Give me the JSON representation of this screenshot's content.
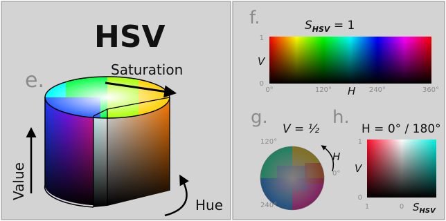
{
  "colors": {
    "panel_bg": "#d3d3d3",
    "panel_border": "#8f8f8f",
    "text_dark": "#111111",
    "text_gray": "#8a8a8a",
    "arrow": "#000000"
  },
  "cylinder_panel": {
    "title": "HSV",
    "letter": "e.",
    "saturation_label": "Saturation",
    "value_label": "Value",
    "hue_label": "Hue"
  },
  "panel_f": {
    "letter": "f.",
    "title_main": "S",
    "title_sub": "HSV",
    "title_rest": " = 1",
    "y_axis_label": "V",
    "y_tick_top": "1",
    "y_tick_bottom": "0",
    "x_axis_label": "H",
    "x_ticks": [
      "0°",
      "120°",
      "240°",
      "360°"
    ]
  },
  "panel_g": {
    "letter": "g.",
    "title": "V = ½",
    "label_top": "120°",
    "label_right": "0°",
    "label_bottom": "240°",
    "hue_label": "H"
  },
  "panel_h": {
    "letter": "h.",
    "title": "H = 0° / 180°",
    "y_axis_label": "V",
    "y_tick_top": "1",
    "y_tick_bottom": "0",
    "x_tick_left": "1",
    "x_tick_mid": "0",
    "x_label_main": "S",
    "x_label_sub": "HSV"
  }
}
